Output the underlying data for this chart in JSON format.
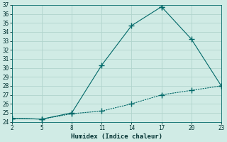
{
  "xlabel": "Humidex (Indice chaleur)",
  "background_color": "#d0ebe5",
  "grid_color": "#b0d4cc",
  "line_color": "#006868",
  "xlim": [
    2,
    23
  ],
  "ylim": [
    24,
    37
  ],
  "xticks": [
    2,
    5,
    8,
    11,
    14,
    17,
    20,
    23
  ],
  "yticks": [
    24,
    25,
    26,
    27,
    28,
    29,
    30,
    31,
    32,
    33,
    34,
    35,
    36,
    37
  ],
  "line1_x": [
    2,
    5,
    8,
    11,
    14,
    17
  ],
  "line1_y": [
    24.4,
    24.3,
    25.0,
    30.3,
    34.7,
    36.8
  ],
  "line2_x": [
    17,
    20,
    23
  ],
  "line2_y": [
    36.8,
    33.2,
    28.0
  ],
  "line3_x": [
    2,
    5,
    8,
    11,
    14,
    17,
    20,
    23
  ],
  "line3_y": [
    24.4,
    24.3,
    24.9,
    25.2,
    26.0,
    27.0,
    27.5,
    28.0
  ]
}
